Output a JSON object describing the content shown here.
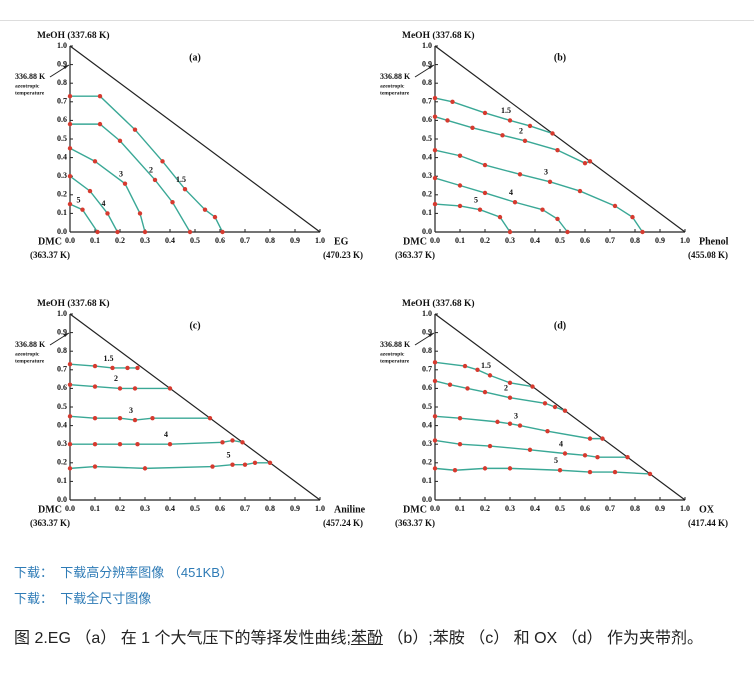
{
  "chart_data": [
    {
      "type": "line",
      "panel": "(a)",
      "y_label": "MeOH (337.68 K)",
      "annotation": [
        "336.88 K",
        "azeotropic",
        "temperature"
      ],
      "origin_label": "DMC",
      "origin_sub": "(363.37 K)",
      "x_label": "EG",
      "x_sub": "(470.23 K)",
      "xlim": [
        0,
        1
      ],
      "ylim": [
        0,
        1
      ],
      "xticks": [
        {
          "value": 0,
          "label": "0.0"
        },
        {
          "value": 0.1,
          "label": "0.1"
        },
        {
          "value": 0.2,
          "label": "0.2"
        },
        {
          "value": 0.3,
          "label": "0.3"
        },
        {
          "value": 0.4,
          "label": "0.4"
        },
        {
          "value": 0.5,
          "label": "0.5"
        },
        {
          "value": 0.6,
          "label": "0.6"
        },
        {
          "value": 0.7,
          "label": "0.7"
        },
        {
          "value": 0.8,
          "label": "0.8"
        },
        {
          "value": 0.9,
          "label": "0.9"
        },
        {
          "value": 1,
          "label": "1.0"
        }
      ],
      "yticks": [
        {
          "value": 0,
          "label": "0.0"
        },
        {
          "value": 0.1,
          "label": "0.1"
        },
        {
          "value": 0.2,
          "label": "0.2"
        },
        {
          "value": 0.3,
          "label": "0.3"
        },
        {
          "value": 0.4,
          "label": "0.4"
        },
        {
          "value": 0.5,
          "label": "0.5"
        },
        {
          "value": 0.6,
          "label": "0.6"
        },
        {
          "value": 0.7,
          "label": "0.7"
        },
        {
          "value": 0.8,
          "label": "0.8"
        },
        {
          "value": 0.9,
          "label": "0.9"
        },
        {
          "value": 1,
          "label": "1.0"
        }
      ],
      "line_color": "#3aa896",
      "marker_color": "#d63a2f",
      "series": [
        {
          "name": "1.5",
          "x": [
            0,
            0.12,
            0.26,
            0.37,
            0.46,
            0.54,
            0.58,
            0.61
          ],
          "values": [
            0.73,
            0.73,
            0.55,
            0.38,
            0.23,
            0.12,
            0.08,
            0
          ]
        },
        {
          "name": "2",
          "x": [
            0,
            0.12,
            0.2,
            0.34,
            0.41,
            0.48
          ],
          "values": [
            0.58,
            0.58,
            0.49,
            0.28,
            0.16,
            0
          ]
        },
        {
          "name": "3",
          "x": [
            0,
            0.1,
            0.22,
            0.28,
            0.3
          ],
          "values": [
            0.45,
            0.38,
            0.26,
            0.1,
            0
          ]
        },
        {
          "name": "4",
          "x": [
            0,
            0.08,
            0.15,
            0.19
          ],
          "values": [
            0.3,
            0.22,
            0.1,
            0
          ]
        },
        {
          "name": "5",
          "x": [
            0,
            0.05,
            0.11
          ],
          "values": [
            0.15,
            0.12,
            0
          ]
        }
      ]
    },
    {
      "type": "line",
      "panel": "(b)",
      "y_label": "MeOH (337.68 K)",
      "annotation": [
        "336.88 K",
        "azeotropic",
        "temperature"
      ],
      "origin_label": "DMC",
      "origin_sub": "(363.37 K)",
      "x_label": "Phenol",
      "x_sub": "(455.08 K)",
      "xlim": [
        0,
        1
      ],
      "ylim": [
        0,
        1
      ],
      "xticks": [
        {
          "value": 0,
          "label": "0.0"
        },
        {
          "value": 0.1,
          "label": "0.1"
        },
        {
          "value": 0.2,
          "label": "0.2"
        },
        {
          "value": 0.3,
          "label": "0.3"
        },
        {
          "value": 0.4,
          "label": "0.4"
        },
        {
          "value": 0.5,
          "label": "0.5"
        },
        {
          "value": 0.6,
          "label": "0.6"
        },
        {
          "value": 0.7,
          "label": "0.7"
        },
        {
          "value": 0.8,
          "label": "0.8"
        },
        {
          "value": 0.9,
          "label": "0.9"
        },
        {
          "value": 1,
          "label": "1.0"
        }
      ],
      "yticks": [
        {
          "value": 0,
          "label": "0.0"
        },
        {
          "value": 0.1,
          "label": "0.1"
        },
        {
          "value": 0.2,
          "label": "0.2"
        },
        {
          "value": 0.3,
          "label": "0.3"
        },
        {
          "value": 0.4,
          "label": "0.4"
        },
        {
          "value": 0.5,
          "label": "0.5"
        },
        {
          "value": 0.6,
          "label": "0.6"
        },
        {
          "value": 0.7,
          "label": "0.7"
        },
        {
          "value": 0.8,
          "label": "0.8"
        },
        {
          "value": 0.9,
          "label": "0.9"
        },
        {
          "value": 1,
          "label": "1.0"
        }
      ],
      "line_color": "#3aa896",
      "marker_color": "#d63a2f",
      "series": [
        {
          "name": "1.5",
          "x": [
            0,
            0.07,
            0.2,
            0.3,
            0.38,
            0.47
          ],
          "values": [
            0.72,
            0.7,
            0.64,
            0.6,
            0.57,
            0.53
          ]
        },
        {
          "name": "2",
          "x": [
            0,
            0.05,
            0.15,
            0.27,
            0.36,
            0.49,
            0.6,
            0.62
          ],
          "values": [
            0.62,
            0.6,
            0.56,
            0.52,
            0.49,
            0.44,
            0.37,
            0.38
          ]
        },
        {
          "name": "3",
          "x": [
            0,
            0.1,
            0.2,
            0.34,
            0.46,
            0.58,
            0.72,
            0.79,
            0.83
          ],
          "values": [
            0.44,
            0.41,
            0.36,
            0.31,
            0.27,
            0.22,
            0.14,
            0.08,
            0
          ]
        },
        {
          "name": "4",
          "x": [
            0,
            0.1,
            0.2,
            0.32,
            0.43,
            0.49,
            0.53
          ],
          "values": [
            0.29,
            0.25,
            0.21,
            0.16,
            0.12,
            0.07,
            0
          ]
        },
        {
          "name": "5",
          "x": [
            0,
            0.1,
            0.18,
            0.26,
            0.3
          ],
          "values": [
            0.15,
            0.14,
            0.12,
            0.08,
            0
          ]
        }
      ]
    },
    {
      "type": "line",
      "panel": "(c)",
      "y_label": "MeOH (337.68 K)",
      "annotation": [
        "336.88 K",
        "azeotropic",
        "temperature"
      ],
      "origin_label": "DMC",
      "origin_sub": "(363.37 K)",
      "x_label": "Aniline",
      "x_sub": "(457.24 K)",
      "xlim": [
        0,
        1
      ],
      "ylim": [
        0,
        1
      ],
      "xticks": [
        {
          "value": 0,
          "label": "0.0"
        },
        {
          "value": 0.1,
          "label": "0.1"
        },
        {
          "value": 0.2,
          "label": "0.2"
        },
        {
          "value": 0.3,
          "label": "0.3"
        },
        {
          "value": 0.4,
          "label": "0.4"
        },
        {
          "value": 0.5,
          "label": "0.5"
        },
        {
          "value": 0.6,
          "label": "0.6"
        },
        {
          "value": 0.7,
          "label": "0.7"
        },
        {
          "value": 0.8,
          "label": "0.8"
        },
        {
          "value": 0.9,
          "label": "0.9"
        },
        {
          "value": 1,
          "label": "1.0"
        }
      ],
      "yticks": [
        {
          "value": 0,
          "label": "0.0"
        },
        {
          "value": 0.1,
          "label": "0.1"
        },
        {
          "value": 0.2,
          "label": "0.2"
        },
        {
          "value": 0.3,
          "label": "0.3"
        },
        {
          "value": 0.4,
          "label": "0.4"
        },
        {
          "value": 0.5,
          "label": "0.5"
        },
        {
          "value": 0.6,
          "label": "0.6"
        },
        {
          "value": 0.7,
          "label": "0.7"
        },
        {
          "value": 0.8,
          "label": "0.8"
        },
        {
          "value": 0.9,
          "label": "0.9"
        },
        {
          "value": 1,
          "label": "1.0"
        }
      ],
      "line_color": "#3aa896",
      "marker_color": "#d63a2f",
      "series": [
        {
          "name": "1.5",
          "x": [
            0,
            0.1,
            0.17,
            0.23,
            0.27
          ],
          "values": [
            0.73,
            0.72,
            0.71,
            0.71,
            0.71
          ]
        },
        {
          "name": "2",
          "x": [
            0,
            0.1,
            0.2,
            0.26,
            0.4
          ],
          "values": [
            0.62,
            0.61,
            0.6,
            0.6,
            0.6
          ]
        },
        {
          "name": "3",
          "x": [
            0,
            0.1,
            0.2,
            0.26,
            0.33,
            0.56
          ],
          "values": [
            0.45,
            0.44,
            0.44,
            0.43,
            0.44,
            0.44
          ]
        },
        {
          "name": "4",
          "x": [
            0,
            0.1,
            0.2,
            0.27,
            0.4,
            0.61,
            0.65,
            0.69
          ],
          "values": [
            0.3,
            0.3,
            0.3,
            0.3,
            0.3,
            0.31,
            0.32,
            0.31
          ]
        },
        {
          "name": "5",
          "x": [
            0,
            0.1,
            0.3,
            0.57,
            0.65,
            0.7,
            0.74,
            0.8
          ],
          "values": [
            0.17,
            0.18,
            0.17,
            0.18,
            0.19,
            0.19,
            0.2,
            0.2
          ]
        }
      ]
    },
    {
      "type": "line",
      "panel": "(d)",
      "y_label": "MeOH (337.68 K)",
      "annotation": [
        "336.88 K",
        "azeotropic",
        "temperature"
      ],
      "origin_label": "DMC",
      "origin_sub": "(363.37 K)",
      "x_label": "OX",
      "x_sub": "(417.44 K)",
      "xlim": [
        0,
        1
      ],
      "ylim": [
        0,
        1
      ],
      "xticks": [
        {
          "value": 0,
          "label": "0.0"
        },
        {
          "value": 0.1,
          "label": "0.1"
        },
        {
          "value": 0.2,
          "label": "0.2"
        },
        {
          "value": 0.3,
          "label": "0.3"
        },
        {
          "value": 0.4,
          "label": "0.4"
        },
        {
          "value": 0.5,
          "label": "0.5"
        },
        {
          "value": 0.6,
          "label": "0.6"
        },
        {
          "value": 0.7,
          "label": "0.7"
        },
        {
          "value": 0.8,
          "label": "0.8"
        },
        {
          "value": 0.9,
          "label": "0.9"
        },
        {
          "value": 1,
          "label": "1.0"
        }
      ],
      "yticks": [
        {
          "value": 0,
          "label": "0.0"
        },
        {
          "value": 0.1,
          "label": "0.1"
        },
        {
          "value": 0.2,
          "label": "0.2"
        },
        {
          "value": 0.3,
          "label": "0.3"
        },
        {
          "value": 0.4,
          "label": "0.4"
        },
        {
          "value": 0.5,
          "label": "0.5"
        },
        {
          "value": 0.6,
          "label": "0.6"
        },
        {
          "value": 0.7,
          "label": "0.7"
        },
        {
          "value": 0.8,
          "label": "0.8"
        },
        {
          "value": 0.9,
          "label": "0.9"
        },
        {
          "value": 1,
          "label": "1.0"
        }
      ],
      "line_color": "#3aa896",
      "marker_color": "#d63a2f",
      "series": [
        {
          "name": "1.5",
          "x": [
            0,
            0.12,
            0.17,
            0.22,
            0.3,
            0.39
          ],
          "values": [
            0.74,
            0.72,
            0.7,
            0.67,
            0.63,
            0.61
          ]
        },
        {
          "name": "2",
          "x": [
            0,
            0.06,
            0.13,
            0.2,
            0.3,
            0.44,
            0.48,
            0.52
          ],
          "values": [
            0.64,
            0.62,
            0.6,
            0.58,
            0.55,
            0.52,
            0.5,
            0.48
          ]
        },
        {
          "name": "3",
          "x": [
            0,
            0.1,
            0.25,
            0.3,
            0.34,
            0.45,
            0.62,
            0.67
          ],
          "values": [
            0.45,
            0.44,
            0.42,
            0.41,
            0.4,
            0.37,
            0.33,
            0.33
          ]
        },
        {
          "name": "4",
          "x": [
            0,
            0.1,
            0.22,
            0.38,
            0.52,
            0.6,
            0.65,
            0.77
          ],
          "values": [
            0.32,
            0.3,
            0.29,
            0.27,
            0.25,
            0.24,
            0.23,
            0.23
          ]
        },
        {
          "name": "5",
          "x": [
            0,
            0.08,
            0.2,
            0.3,
            0.5,
            0.62,
            0.72,
            0.86
          ],
          "values": [
            0.17,
            0.16,
            0.17,
            0.17,
            0.16,
            0.15,
            0.15,
            0.14
          ]
        }
      ]
    }
  ],
  "links": [
    {
      "label": "下载：",
      "text": "下载高分辨率图像",
      "size": "（451KB）"
    },
    {
      "label": "下载：",
      "text": "下载全尺寸图像"
    }
  ],
  "caption": {
    "before": "图 2.EG （a） 在 1 个大气压下的等择发性曲线;",
    "underlined": "苯酚",
    "after": " （b）;苯胺 （c） 和 OX （d） 作为夹带剂。"
  }
}
